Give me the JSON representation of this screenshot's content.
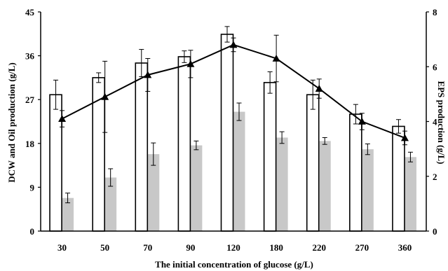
{
  "chart_data": {
    "type": "bar",
    "categories": [
      "30",
      "50",
      "70",
      "90",
      "120",
      "180",
      "220",
      "270",
      "360"
    ],
    "xlabel": "The initial concentration of glucose (g/L)",
    "ylabel_left": "DCW and Oil production (g/L)",
    "ylabel_right": "EPS production (g/L)",
    "ylim_left": [
      0,
      45
    ],
    "yticks_left": [
      "0",
      "9",
      "18",
      "27",
      "36",
      "45"
    ],
    "ylim_right": [
      0,
      8
    ],
    "yticks_right": [
      "0",
      "2",
      "4",
      "6",
      "8"
    ],
    "grid": false,
    "series": [
      {
        "kind": "bar",
        "axis": "left",
        "fill": "#ffffff",
        "stroke": "#000000",
        "values": [
          28.0,
          31.5,
          34.5,
          35.8,
          40.4,
          30.5,
          28.0,
          24.0,
          21.5
        ],
        "errors": [
          3.0,
          1.0,
          2.8,
          1.2,
          1.6,
          2.2,
          3.0,
          2.0,
          1.4
        ]
      },
      {
        "kind": "bar",
        "axis": "left",
        "fill": "#c8c8c8",
        "stroke": "none",
        "values": [
          6.8,
          11.0,
          15.8,
          17.6,
          24.5,
          19.2,
          18.5,
          16.8,
          15.2
        ],
        "errors": [
          1.0,
          1.8,
          2.3,
          0.9,
          1.8,
          1.2,
          0.7,
          1.1,
          1.0
        ]
      },
      {
        "kind": "line",
        "axis": "right",
        "color": "#000000",
        "marker": "triangle",
        "values": [
          4.1,
          4.9,
          5.7,
          6.1,
          6.8,
          6.3,
          5.2,
          4.0,
          3.4
        ],
        "errors": [
          0.3,
          1.3,
          0.6,
          0.5,
          0.25,
          0.85,
          0.35,
          0.3,
          0.25
        ]
      }
    ]
  }
}
